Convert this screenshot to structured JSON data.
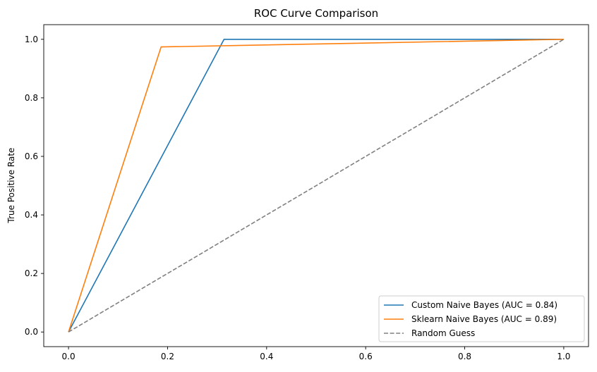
{
  "chart_data": {
    "type": "line",
    "title": "ROC Curve Comparison",
    "xlabel": "",
    "ylabel": "True Positive Rate",
    "xlim": [
      -0.05,
      1.05
    ],
    "ylim": [
      -0.05,
      1.05
    ],
    "xticks": [
      0.0,
      0.2,
      0.4,
      0.6,
      0.8,
      1.0
    ],
    "yticks": [
      0.0,
      0.2,
      0.4,
      0.6,
      0.8,
      1.0
    ],
    "xtick_labels": [
      "0.0",
      "0.2",
      "0.4",
      "0.6",
      "0.8",
      "1.0"
    ],
    "ytick_labels": [
      "0.0",
      "0.2",
      "0.4",
      "0.6",
      "0.8",
      "1.0"
    ],
    "grid": false,
    "legend_position": "lower-right",
    "series": [
      {
        "name": "Custom Naive Bayes (AUC = 0.84)",
        "color": "#1f77b4",
        "dash": "solid",
        "points": [
          [
            0.0,
            0.0
          ],
          [
            0.314,
            1.0
          ],
          [
            1.0,
            1.0
          ]
        ]
      },
      {
        "name": "Sklearn Naive Bayes (AUC = 0.89)",
        "color": "#ff7f0e",
        "dash": "solid",
        "points": [
          [
            0.0,
            0.0
          ],
          [
            0.187,
            0.974
          ],
          [
            1.0,
            1.0
          ]
        ]
      },
      {
        "name": "Random Guess",
        "color": "#808080",
        "dash": "dashed",
        "points": [
          [
            0.0,
            0.0
          ],
          [
            1.0,
            1.0
          ]
        ]
      }
    ]
  }
}
